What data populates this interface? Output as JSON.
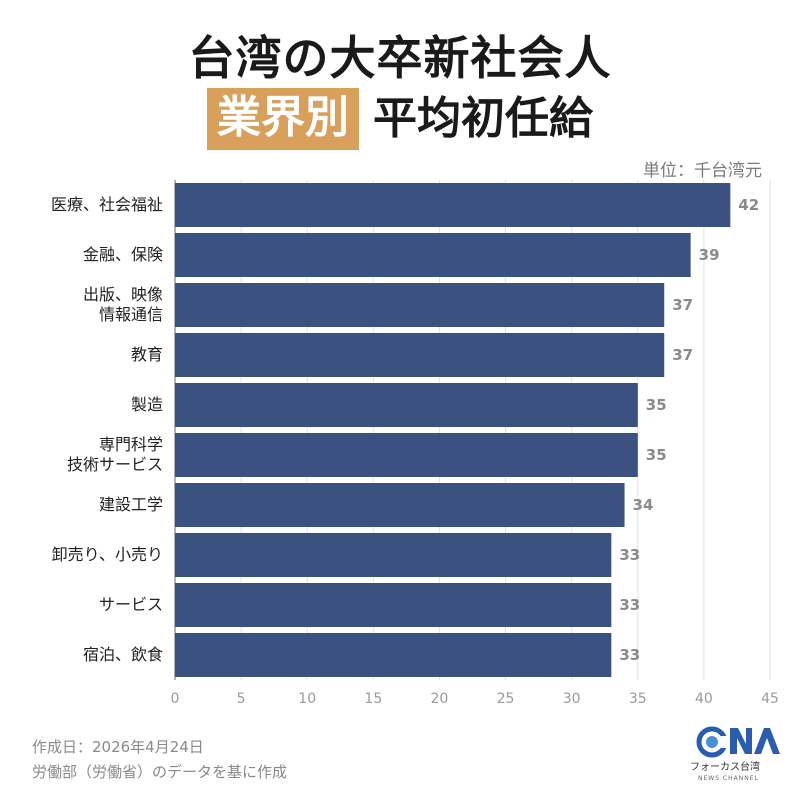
{
  "header": {
    "title_line1": "台湾の大卒新社会人",
    "title_highlight": "業界別",
    "title_line2": "平均初任給",
    "unit": "単位：千台湾元"
  },
  "chart_data": {
    "type": "bar",
    "orientation": "horizontal",
    "categories": [
      [
        "医療、社会福祉"
      ],
      [
        "金融、保険"
      ],
      [
        "出版、映像",
        "情報通信"
      ],
      [
        "教育"
      ],
      [
        "製造"
      ],
      [
        "専門科学",
        "技術サービス"
      ],
      [
        "建設工学"
      ],
      [
        "卸売り、小売り"
      ],
      [
        "サービス"
      ],
      [
        "宿泊、飲食"
      ]
    ],
    "values": [
      42,
      39,
      37,
      37,
      35,
      35,
      34,
      33,
      33,
      33
    ],
    "value_labels": [
      "42",
      "39",
      "37",
      "37",
      "35",
      "35",
      "34",
      "33",
      "33",
      "33"
    ],
    "xlim": [
      0,
      45
    ],
    "xticks": [
      0,
      5,
      10,
      15,
      20,
      25,
      30,
      35,
      40,
      45
    ],
    "xtick_labels": [
      "0",
      "5",
      "10",
      "15",
      "20",
      "25",
      "30",
      "35",
      "40",
      "45"
    ],
    "bar_color": "#3b5281",
    "grid": true,
    "legend": "none"
  },
  "footer": {
    "date": "作成日：2026年4月24日",
    "source": "労働部（労働省）のデータを基に作成"
  },
  "logo": {
    "mark": "CNA",
    "name": "フォーカス台湾",
    "sub": "NEWS CHANNEL",
    "accent_color": "#2a5db0"
  }
}
